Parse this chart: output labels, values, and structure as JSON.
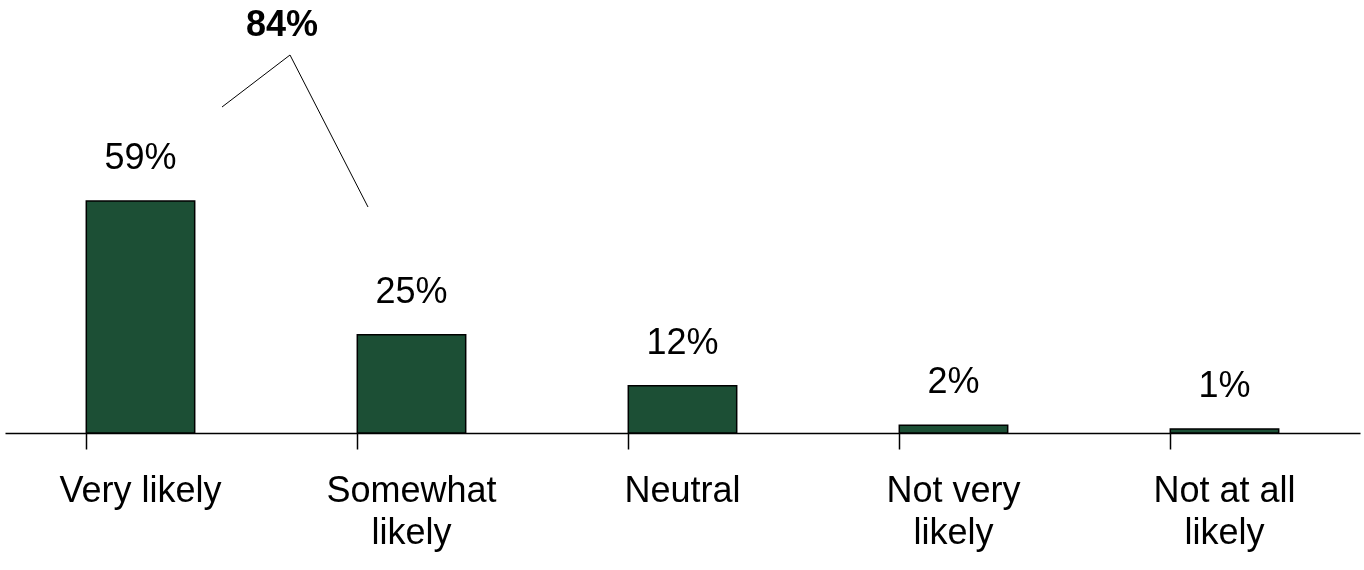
{
  "chart_data": {
    "type": "bar",
    "categories": [
      "Very likely",
      "Somewhat likely",
      "Neutral",
      "Not very likely",
      "Not at all likely"
    ],
    "values": [
      59,
      25,
      12,
      2,
      1
    ],
    "color": "#1c4f35",
    "data_labels": true,
    "value_labels": [
      "59%",
      "25%",
      "12%",
      "2%",
      "1%"
    ],
    "annotations": [
      "84%"
    ],
    "grid": false
  }
}
